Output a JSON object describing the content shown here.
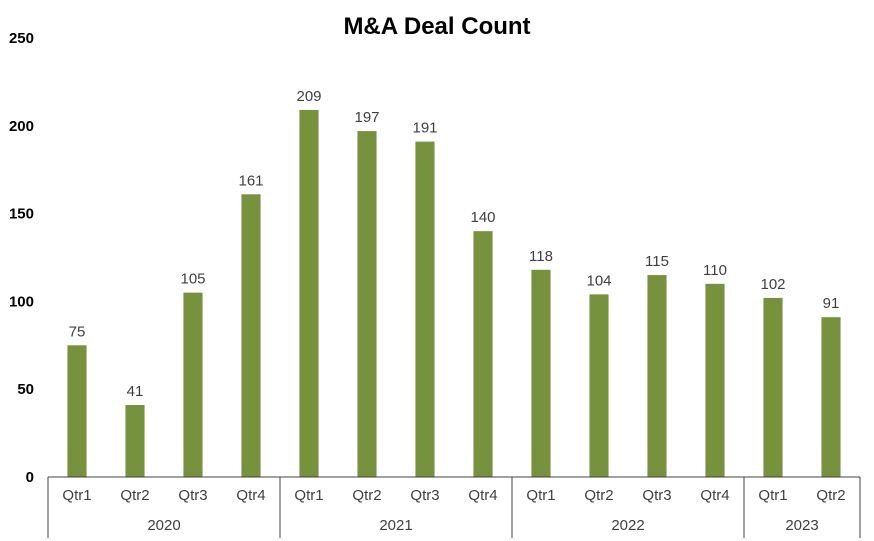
{
  "chart_data": {
    "type": "bar",
    "title": "M&A Deal Count",
    "ylim": [
      0,
      250
    ],
    "yticks": [
      0,
      50,
      100,
      150,
      200,
      250
    ],
    "groups": [
      {
        "label": "2020",
        "categories": [
          "Qtr1",
          "Qtr2",
          "Qtr3",
          "Qtr4"
        ],
        "values": [
          75,
          41,
          105,
          161
        ]
      },
      {
        "label": "2021",
        "categories": [
          "Qtr1",
          "Qtr2",
          "Qtr3",
          "Qtr4"
        ],
        "values": [
          209,
          197,
          191,
          140
        ]
      },
      {
        "label": "2022",
        "categories": [
          "Qtr1",
          "Qtr2",
          "Qtr3",
          "Qtr4"
        ],
        "values": [
          118,
          104,
          115,
          110
        ]
      },
      {
        "label": "2023",
        "categories": [
          "Qtr1",
          "Qtr2"
        ],
        "values": [
          102,
          91
        ]
      }
    ],
    "bar_color": "#76923c",
    "grid": false,
    "legend": "none"
  }
}
